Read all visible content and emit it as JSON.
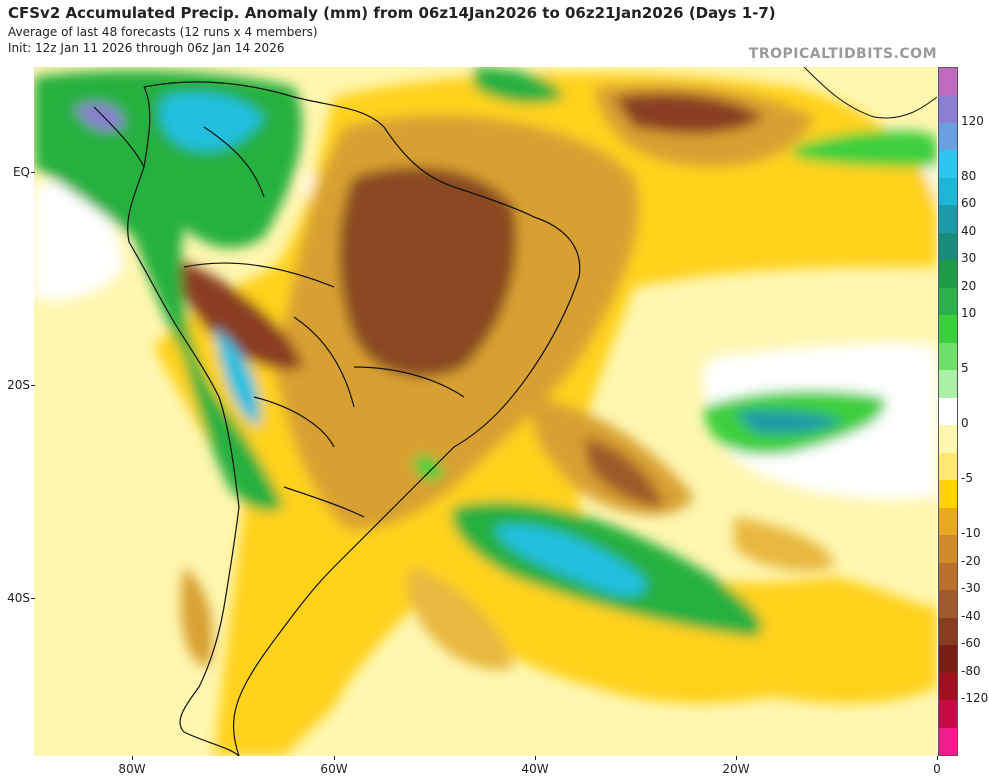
{
  "header": {
    "title": "CFSv2 Accumulated Precip. Anomaly (mm) from 06z14Jan2026 to 06z21Jan2026 (Days 1-7)",
    "subtitle": "Average of last 48 forecasts (12 runs x 4 members)",
    "init": "Init: 12z Jan 11 2026 through 06z Jan 14 2026"
  },
  "credit": "TROPICALTIDBITS.COM",
  "axes": {
    "y_labels": [
      "EQ",
      "20S",
      "40S"
    ],
    "x_labels": [
      "80W",
      "60W",
      "40W",
      "20W",
      "0"
    ]
  },
  "colorbar": {
    "labels": [
      "120",
      "80",
      "60",
      "40",
      "30",
      "20",
      "10",
      "5",
      "0",
      "-5",
      "-10",
      "-20",
      "-30",
      "-40",
      "-60",
      "-80",
      "-120"
    ],
    "colors": [
      "#c06ac0",
      "#8a7fd0",
      "#6aa0e0",
      "#2ec4f0",
      "#1fb5d8",
      "#1e9aa8",
      "#1a8c7c",
      "#1f9a48",
      "#2bb04a",
      "#3ccf3c",
      "#6ee06a",
      "#aaf0a6",
      "#ffffff",
      "#fff6b0",
      "#ffe870",
      "#ffd400",
      "#e8a820",
      "#d08c28",
      "#b8702a",
      "#9e5a2c",
      "#8a3c22",
      "#7a1e14",
      "#a0101e",
      "#c80a46",
      "#f01e8c"
    ]
  },
  "colors": {
    "land_border": "#111111",
    "dry_light": "#fff3a0",
    "dry_medium": "#ffd21c",
    "dry_strong": "#d8a030",
    "dry_very_strong": "#8a4a24",
    "wet_light": "#7de07a",
    "wet_medium": "#28b040",
    "wet_strong": "#22bfe0"
  }
}
